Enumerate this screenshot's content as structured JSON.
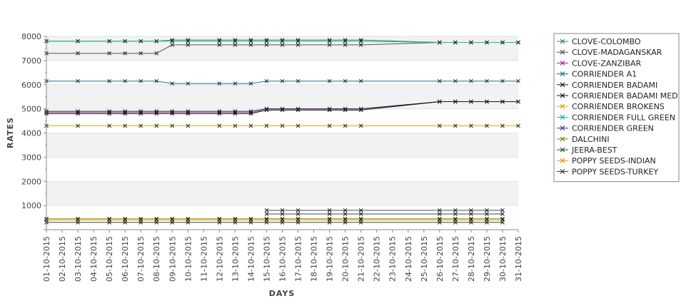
{
  "chart_data": {
    "type": "line",
    "title": "",
    "xlabel": "DAYS",
    "ylabel": "RATES",
    "ylim": [
      0,
      8000
    ],
    "yticks": [
      1000,
      2000,
      3000,
      4000,
      5000,
      6000,
      7000,
      8000
    ],
    "grid": true,
    "legend_position": "right",
    "categories": [
      "01-10-2015",
      "02-10-2015",
      "03-10-2015",
      "04-10-2015",
      "05-10-2015",
      "06-10-2015",
      "07-10-2015",
      "08-10-2015",
      "09-10-2015",
      "10-10-2015",
      "11-10-2015",
      "12-10-2015",
      "13-10-2015",
      "14-10-2015",
      "15-10-2015",
      "16-10-2015",
      "17-10-2015",
      "18-10-2015",
      "19-10-2015",
      "20-10-2015",
      "21-10-2015",
      "22-10-2015",
      "23-10-2015",
      "24-10-2015",
      "25-10-2015",
      "26-10-2015",
      "27-10-2015",
      "28-10-2015",
      "29-10-2015",
      "30-10-2015",
      "31-10-2015"
    ],
    "series": [
      {
        "name": "CLOVE-COLOMBO",
        "color": "#2e8b57",
        "values": [
          7800,
          null,
          7800,
          null,
          7800,
          7800,
          7800,
          7800,
          7850,
          7850,
          null,
          7850,
          7850,
          7850,
          7850,
          7850,
          7850,
          null,
          7850,
          7850,
          7850,
          null,
          null,
          null,
          null,
          7750,
          7750,
          7750,
          7750,
          7750,
          7750
        ]
      },
      {
        "name": "CLOVE-MADAGANSKAR",
        "color": "#555555",
        "values": [
          7300,
          null,
          7300,
          null,
          7300,
          7300,
          7300,
          7300,
          7650,
          7650,
          null,
          7650,
          7650,
          7650,
          7650,
          7650,
          7650,
          null,
          7650,
          7650,
          7650,
          null,
          null,
          null,
          null,
          7750,
          7750,
          7750,
          7750,
          7750,
          7750
        ]
      },
      {
        "name": "CLOVE-ZANZIBAR",
        "color": "#8b3a8b",
        "values": [
          4850,
          null,
          4850,
          null,
          4850,
          4850,
          4850,
          4850,
          4850,
          4850,
          null,
          4850,
          4850,
          4850,
          4950,
          4950,
          4950,
          null,
          4950,
          4950,
          4950,
          null,
          null,
          null,
          null,
          5300,
          5300,
          5300,
          5300,
          5300,
          5300
        ]
      },
      {
        "name": "CORRIENDER A1",
        "color": "#1f6f8b",
        "values": [
          6150,
          null,
          6150,
          null,
          6150,
          6150,
          6150,
          6150,
          6050,
          6050,
          null,
          6050,
          6050,
          6050,
          6150,
          6150,
          6150,
          null,
          6150,
          6150,
          6150,
          null,
          null,
          null,
          null,
          6150,
          6150,
          6150,
          6150,
          6150,
          6150
        ]
      },
      {
        "name": "CORRIENDER BADAMI",
        "color": "#3a1a1a",
        "values": [
          4800,
          null,
          4800,
          null,
          4800,
          4800,
          4800,
          4800,
          4800,
          4800,
          null,
          4800,
          4800,
          4800,
          4950,
          4950,
          4950,
          null,
          4950,
          4950,
          4950,
          null,
          null,
          null,
          null,
          5300,
          5300,
          5300,
          5300,
          5300,
          5300
        ]
      },
      {
        "name": "CORRIENDER BADAMI MED",
        "color": "#101040",
        "values": [
          4900,
          null,
          4900,
          null,
          4900,
          4900,
          4900,
          4900,
          4900,
          4900,
          null,
          4900,
          4900,
          4900,
          5000,
          5000,
          5000,
          null,
          5000,
          5000,
          5000,
          null,
          null,
          null,
          null,
          5300,
          5300,
          5300,
          5300,
          5300,
          5300
        ]
      },
      {
        "name": "CORRIENDER BROKENS",
        "color": "#d9a600",
        "values": [
          4300,
          null,
          4300,
          null,
          4300,
          4300,
          4300,
          4300,
          4300,
          4300,
          null,
          4300,
          4300,
          4300,
          4300,
          4300,
          4300,
          null,
          4300,
          4300,
          4300,
          null,
          null,
          null,
          null,
          4300,
          4300,
          4300,
          4300,
          4300,
          4300
        ]
      },
      {
        "name": "CORRIENDER FULL GREEN",
        "color": "#20b2aa",
        "values": [
          7800,
          null,
          7800,
          null,
          7800,
          7800,
          7800,
          7800,
          7800,
          7800,
          null,
          7800,
          7800,
          7800,
          7800,
          7800,
          7800,
          null,
          7800,
          7800,
          7800,
          null,
          null,
          null,
          null,
          7750,
          7750,
          7750,
          7750,
          7750,
          7750
        ]
      },
      {
        "name": "CORRIENDER GREEN",
        "color": "#483d8b",
        "values": [
          null,
          null,
          null,
          null,
          null,
          null,
          null,
          null,
          null,
          null,
          null,
          null,
          null,
          null,
          800,
          800,
          800,
          null,
          800,
          800,
          800,
          null,
          null,
          null,
          null,
          800,
          800,
          800,
          800,
          800,
          null
        ]
      },
      {
        "name": "DALCHINI",
        "color": "#8b8b00",
        "values": [
          450,
          null,
          450,
          null,
          450,
          450,
          450,
          450,
          450,
          450,
          null,
          450,
          450,
          450,
          450,
          450,
          450,
          null,
          450,
          450,
          450,
          null,
          null,
          null,
          null,
          450,
          450,
          450,
          450,
          450,
          null
        ]
      },
      {
        "name": "JEERA-BEST",
        "color": "#1b5e20",
        "values": [
          null,
          null,
          null,
          null,
          null,
          null,
          null,
          null,
          null,
          null,
          null,
          null,
          null,
          null,
          650,
          650,
          650,
          null,
          650,
          650,
          650,
          null,
          null,
          null,
          null,
          650,
          650,
          650,
          650,
          650,
          null
        ]
      },
      {
        "name": "POPPY SEEDS-INDIAN",
        "color": "#e69500",
        "values": [
          400,
          null,
          400,
          null,
          400,
          400,
          400,
          400,
          400,
          400,
          null,
          400,
          400,
          400,
          400,
          400,
          400,
          null,
          400,
          400,
          400,
          null,
          null,
          null,
          null,
          400,
          400,
          400,
          400,
          400,
          null
        ]
      },
      {
        "name": "POPPY SEEDS-TURKEY",
        "color": "#2f4f2f",
        "values": [
          300,
          null,
          300,
          null,
          300,
          300,
          300,
          300,
          300,
          300,
          null,
          300,
          300,
          300,
          300,
          300,
          300,
          null,
          300,
          300,
          300,
          null,
          null,
          null,
          null,
          300,
          300,
          300,
          300,
          300,
          null
        ]
      }
    ]
  }
}
